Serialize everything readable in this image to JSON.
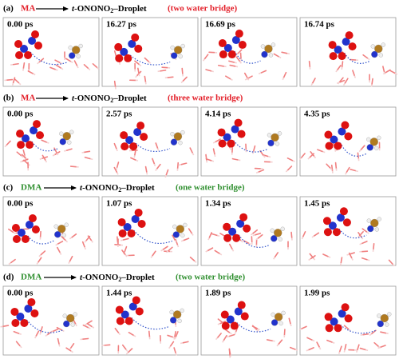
{
  "rows": [
    {
      "label": "(a)",
      "reactant": "MA",
      "color": "#e3202a",
      "product": {
        "italic": "t",
        "text": "-ONONO",
        "sub": "2",
        "tail": "–Droplet"
      },
      "bridge": "(two water bridge)",
      "times": [
        "0.00 ps",
        "16.27 ps",
        "16.69 ps",
        "16.74 ps"
      ]
    },
    {
      "label": "(b)",
      "reactant": "MA",
      "color": "#e3202a",
      "product": {
        "italic": "t",
        "text": "-ONONO",
        "sub": "2",
        "tail": "–Droplet"
      },
      "bridge": "(three water bridge)",
      "times": [
        "0.00 ps",
        "2.57 ps",
        "4.14 ps",
        "4.35 ps"
      ]
    },
    {
      "label": "(c)",
      "reactant": "DMA",
      "color": "#2f8f2f",
      "product": {
        "italic": "t",
        "text": "-ONONO",
        "sub": "2",
        "tail": "–Droplet"
      },
      "bridge": "(one water bridge)",
      "times": [
        "0.00 ps",
        "1.07 ps",
        "1.34 ps",
        "1.45 ps"
      ]
    },
    {
      "label": "(d)",
      "reactant": "DMA",
      "color": "#2f8f2f",
      "product": {
        "italic": "t",
        "text": "-ONONO",
        "sub": "2",
        "tail": "–Droplet"
      },
      "bridge": "(two water bridge)",
      "times": [
        "0.00 ps",
        "1.44 ps",
        "1.89 ps",
        "1.99 ps"
      ]
    }
  ]
}
